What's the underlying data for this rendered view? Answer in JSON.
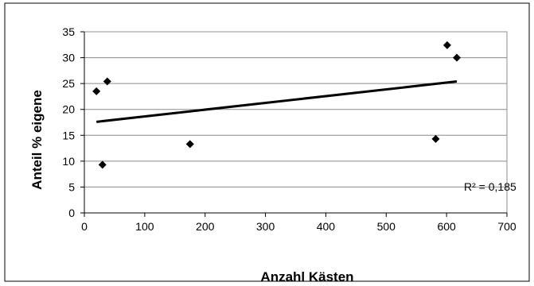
{
  "chart_data": {
    "type": "scatter",
    "title": "",
    "xlabel": "Anzahl Kästen",
    "ylabel": "Anteil % eigene",
    "xlim": [
      0,
      700
    ],
    "ylim": [
      0,
      35
    ],
    "x_ticks": [
      0,
      100,
      200,
      300,
      400,
      500,
      600,
      700
    ],
    "y_ticks": [
      0,
      5,
      10,
      15,
      20,
      25,
      30,
      35
    ],
    "grid": "horizontal",
    "legend": "none",
    "marker": "diamond",
    "series": [
      {
        "points": [
          {
            "x": 20,
            "y": 23.5
          },
          {
            "x": 30,
            "y": 9.3
          },
          {
            "x": 38,
            "y": 25.4
          },
          {
            "x": 175,
            "y": 13.3
          },
          {
            "x": 582,
            "y": 14.3
          },
          {
            "x": 601,
            "y": 32.4
          },
          {
            "x": 617,
            "y": 30.0
          }
        ]
      }
    ],
    "trendline": {
      "type": "linear",
      "x_start": 20,
      "y_start": 17.6,
      "x_end": 617,
      "y_end": 25.4
    },
    "annotation": "R² = 0,185"
  },
  "colors": {
    "marker": "#000000",
    "trendline": "#000000",
    "grid": "#8c8c8c",
    "frame": "#000000"
  }
}
